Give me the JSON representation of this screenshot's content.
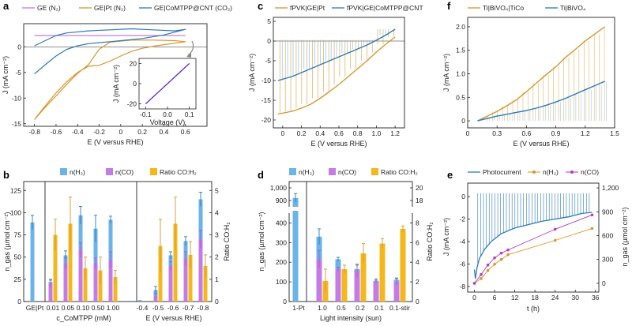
{
  "colors": {
    "blue": "#2c7bb6",
    "orange": "#d9962b",
    "purple": "#a35be0",
    "gold": "#f5b81c",
    "lightblue": "#6ab4ea",
    "violet": "#c47be6",
    "grey": "#8a8a8a",
    "magenta": "#b33bd1",
    "inset": "#5b2bd1"
  },
  "chart_data": [
    {
      "panel": "a",
      "type": "line",
      "legend": [
        "GE (N₂)",
        "GE|Pt (N₂)",
        "GE|CoMTPP@CNT (CO₂)"
      ],
      "xlabel": "E (V versus RHE)",
      "ylabel": "J (mA cm⁻²)",
      "xlim": [
        -0.9,
        0.8
      ],
      "ylim": [
        -15.5,
        4.5
      ],
      "xticks": [
        "-0.8",
        "-0.6",
        "-0.4",
        "-0.2",
        "0",
        "0.2",
        "0.4",
        "0.6"
      ],
      "yticks": [
        "-15",
        "-10",
        "-5",
        "0"
      ],
      "series": [
        {
          "name": "GE (N₂)",
          "color": "violet",
          "x": [
            -0.8,
            -0.4,
            0,
            0.4,
            0.6
          ],
          "y": [
            2.2,
            2.2,
            2.2,
            2.2,
            2.2
          ]
        },
        {
          "name": "GE|Pt (N₂)",
          "color": "orange",
          "x": [
            -0.8,
            -0.7,
            -0.6,
            -0.5,
            -0.4,
            -0.3,
            -0.2,
            -0.1,
            0,
            0.1,
            0.2,
            0.3,
            0.4,
            0.5,
            0.6,
            0.5,
            0.3,
            0.1,
            -0.1,
            -0.2,
            -0.3,
            -0.4,
            -0.5,
            -0.6,
            -0.7,
            -0.8
          ],
          "y": [
            -14.2,
            -11.5,
            -9,
            -6.8,
            -5,
            -3.8,
            -3.6,
            -2.8,
            -1.8,
            -0.9,
            -0.3,
            0.1,
            0.4,
            0.7,
            1.0,
            1.2,
            1.3,
            1.3,
            0.9,
            -0.5,
            -3.5,
            -5.2,
            -7.3,
            -9.6,
            -11.8,
            -14.2
          ]
        },
        {
          "name": "GE|CoMTPP@CNT (CO₂)",
          "color": "blue",
          "x": [
            -0.8,
            -0.7,
            -0.6,
            -0.5,
            -0.4,
            -0.3,
            -0.2,
            -0.1,
            0,
            0.2,
            0.4,
            0.6,
            0.5,
            0.3,
            0.1,
            -0.1,
            -0.3,
            -0.5,
            -0.6,
            -0.7,
            -0.8
          ],
          "y": [
            -5.3,
            -3.5,
            -1.8,
            -0.5,
            0.2,
            0.6,
            0.8,
            1.0,
            1.2,
            1.6,
            2.3,
            3.4,
            3.1,
            3.3,
            3.5,
            3.3,
            3.1,
            2.7,
            2.2,
            1.2,
            0.2
          ]
        }
      ],
      "inset": {
        "xlabel": "Voltage (V)",
        "ylabel": "J (mA cm⁻²)",
        "xticks": [
          "-0.1",
          "0.0",
          "0.1"
        ],
        "yticks": [
          "-20",
          "0",
          "20"
        ],
        "x": [
          -0.1,
          0.1
        ],
        "y": [
          -20,
          20
        ]
      }
    },
    {
      "panel": "c",
      "type": "line",
      "legend": [
        "fPVK|GE|Pt",
        "fPVK|GE|CoMTPP@CNT"
      ],
      "xlabel": "E (V versus RHE)",
      "ylabel": "J (mA cm⁻²)",
      "xlim": [
        -0.1,
        1.3
      ],
      "ylim": [
        -22,
        6
      ],
      "xticks": [
        "0",
        "0.2",
        "0.4",
        "0.6",
        "0.8",
        "1.0",
        "1.2"
      ],
      "yticks": [
        "-20",
        "-15",
        "-10",
        "-5",
        "0",
        "5"
      ],
      "series": [
        {
          "name": "fPVK|GE|Pt",
          "color": "orange",
          "x": [
            -0.05,
            0.1,
            0.2,
            0.3,
            0.4,
            0.5,
            0.6,
            0.7,
            0.8,
            0.9,
            1.0,
            1.1,
            1.2
          ],
          "y": [
            -18.5,
            -17.8,
            -17.0,
            -16.0,
            -14.5,
            -12.8,
            -11.0,
            -9.0,
            -7.0,
            -5.0,
            -2.8,
            -0.8,
            1.0
          ]
        },
        {
          "name": "fPVK|GE|CoMTPP@CNT",
          "color": "blue",
          "x": [
            -0.05,
            0.1,
            0.2,
            0.3,
            0.4,
            0.5,
            0.6,
            0.7,
            0.8,
            0.9,
            1.0,
            1.1,
            1.2
          ],
          "y": [
            -10.0,
            -9.0,
            -8.0,
            -7.0,
            -6.0,
            -5.0,
            -4.0,
            -3.0,
            -2.0,
            -1.0,
            0.2,
            1.5,
            3.0
          ]
        }
      ]
    },
    {
      "panel": "f",
      "type": "line",
      "legend": [
        "Ti|BiVO₄|TiCo",
        "Ti|BiVO₄"
      ],
      "xlabel": "E (V versus RHE)",
      "ylabel": "J (mA cm⁻²)",
      "xlim": [
        0,
        1.5
      ],
      "ylim": [
        -0.15,
        2.2
      ],
      "xticks": [
        "0",
        "0.3",
        "0.6",
        "0.9",
        "1.2",
        "1.5"
      ],
      "yticks": [
        "0",
        "0.5",
        "1.0",
        "1.5",
        "2.0"
      ],
      "series": [
        {
          "name": "Ti|BiVO₄|TiCo",
          "color": "orange",
          "x": [
            0.1,
            0.2,
            0.3,
            0.4,
            0.5,
            0.6,
            0.7,
            0.8,
            0.9,
            1.0,
            1.1,
            1.2,
            1.3,
            1.4
          ],
          "y": [
            0.0,
            0.1,
            0.2,
            0.32,
            0.45,
            0.62,
            0.8,
            0.98,
            1.15,
            1.35,
            1.52,
            1.7,
            1.85,
            2.0
          ]
        },
        {
          "name": "Ti|BiVO₄",
          "color": "blue",
          "x": [
            0.1,
            0.2,
            0.3,
            0.4,
            0.5,
            0.6,
            0.7,
            0.8,
            0.9,
            1.0,
            1.1,
            1.2,
            1.3,
            1.4
          ],
          "y": [
            0.0,
            0.05,
            0.1,
            0.14,
            0.18,
            0.22,
            0.27,
            0.33,
            0.4,
            0.48,
            0.57,
            0.66,
            0.75,
            0.84
          ]
        }
      ]
    },
    {
      "panel": "b",
      "type": "bar",
      "legend": [
        "n(H₂)",
        "n(CO)",
        "Ratio CO:H₂"
      ],
      "ylabel": "n_gas (µmol cm⁻²)",
      "y2label": "Ratio CO:H₂",
      "ylim": [
        0,
        135
      ],
      "y2lim": [
        0,
        5.4
      ],
      "yticks": [
        "0",
        "25",
        "50",
        "75",
        "100",
        "125"
      ],
      "y2ticks": [
        "0",
        "1",
        "2",
        "3",
        "4",
        "5"
      ],
      "group1_label": "c_CoMTPP (mM)",
      "group2_label": "E (V versus RHE)",
      "categories": [
        "GE|Pt",
        "0.01",
        "0.05",
        "0.10",
        "0.50",
        "1.00",
        "-0.4",
        "-0.5",
        "-0.6",
        "-0.7",
        "-0.8"
      ],
      "h2": [
        89,
        22,
        52,
        97,
        82,
        92,
        1,
        13,
        52,
        68,
        115
      ],
      "co": [
        0,
        20,
        43,
        58,
        43,
        47,
        0,
        6,
        40,
        48,
        70
      ],
      "ratio": [
        null,
        3.0,
        3.5,
        1.5,
        1.4,
        1.1,
        null,
        2.5,
        3.5,
        2.1,
        1.6
      ],
      "h2_err": [
        8,
        3,
        5,
        10,
        15,
        4,
        0,
        4,
        4,
        5,
        8
      ],
      "co_err": [
        0,
        4,
        6,
        8,
        6,
        9,
        0,
        3,
        5,
        8,
        10
      ],
      "ratio_err": [
        0,
        0.7,
        1.2,
        0.5,
        0.6,
        0.3,
        0,
        1.2,
        1.2,
        0.6,
        0.5
      ]
    },
    {
      "panel": "d",
      "type": "bar",
      "legend": [
        "n(H₂)",
        "n(CO)",
        "Ratio CO:H₂"
      ],
      "ylabel": "n_gas (µmol cm⁻²)",
      "y2label": "Ratio CO:H₂",
      "xlabel": "Light intensity (sun)",
      "yticks": [
        "0",
        "100",
        "200",
        "300",
        "400",
        "900",
        "1,000"
      ],
      "y2ticks": [
        "0",
        "2",
        "4",
        "6",
        "8",
        "18",
        "20"
      ],
      "categories": [
        "1-Pt",
        "1.0",
        "0.5",
        "0.2",
        "0.1",
        "0.1-stir"
      ],
      "h2": [
        920,
        330,
        215,
        165,
        105,
        110
      ],
      "co": [
        0,
        215,
        165,
        155,
        100,
        100
      ],
      "ratio": [
        null,
        2.1,
        3.3,
        4.9,
        5.9,
        7.4
      ],
      "h2_err": [
        35,
        40,
        10,
        25,
        10,
        10
      ],
      "co_err": [
        0,
        45,
        10,
        30,
        8,
        15
      ],
      "ratio_err": [
        0,
        1.2,
        0.4,
        1.0,
        0.5,
        0.3
      ]
    },
    {
      "panel": "e",
      "type": "line",
      "legend": [
        "Photocurrent",
        "n(H₂)",
        "n(CO)"
      ],
      "xlabel": "t (h)",
      "ylabel": "J (mA cm⁻²)",
      "y2label": "n_gas (µmol cm⁻²)",
      "xlim": [
        -2,
        37
      ],
      "ylim": [
        -8.5,
        1.2
      ],
      "y2lim": [
        -110,
        1260
      ],
      "xticks": [
        "0",
        "6",
        "12",
        "18",
        "24",
        "30",
        "36"
      ],
      "yticks": [
        "-8",
        "-6",
        "-4",
        "-2",
        "0"
      ],
      "y2ticks": [
        "0",
        "300",
        "600",
        "900",
        "1,200"
      ],
      "photocurrent": {
        "x": [
          0,
          0.3,
          0.8,
          1.5,
          3,
          5,
          8,
          12,
          16,
          20,
          24,
          28,
          32,
          35
        ],
        "y": [
          -6.5,
          -7.3,
          -6.3,
          -5.5,
          -4.7,
          -4.0,
          -3.3,
          -2.8,
          -2.5,
          -2.2,
          -2.0,
          -1.8,
          -1.5,
          -1.4
        ]
      },
      "h2": {
        "x": [
          0,
          2,
          4,
          6,
          8,
          10,
          24,
          35
        ],
        "y": [
          0,
          60,
          160,
          240,
          300,
          360,
          540,
          690
        ]
      },
      "co": {
        "x": [
          0,
          2,
          4,
          6,
          8,
          10,
          24,
          35
        ],
        "y": [
          0,
          110,
          230,
          320,
          380,
          420,
          680,
          860
        ]
      }
    }
  ]
}
